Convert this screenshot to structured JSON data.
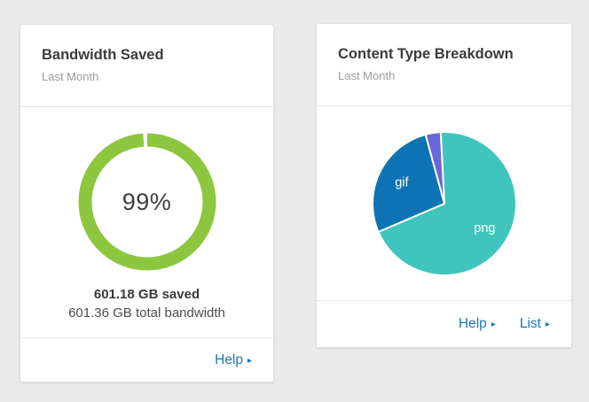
{
  "page": {
    "background_color": "#eaeaea",
    "link_color": "#1779b8",
    "arrow_glyph": "▸"
  },
  "cards": [
    {
      "title": "Bandwidth Saved",
      "subtitle": "Last Month",
      "stat_primary": "601.18 GB saved",
      "stat_secondary": "601.36 GB total bandwidth",
      "links": [
        {
          "label": "Help",
          "arrow": "▸"
        }
      ]
    },
    {
      "title": "Content Type Breakdown",
      "subtitle": "Last Month",
      "links": [
        {
          "label": "Help",
          "arrow": "▸"
        },
        {
          "label": "List",
          "arrow": "▸"
        }
      ]
    }
  ],
  "chart_data": [
    {
      "type": "pie",
      "style": "donut",
      "title": "Bandwidth Saved",
      "subtitle": "Last Month",
      "center_label": "99%",
      "percent": 99,
      "ring_color": "#8dc63f",
      "remainder_color": "#ffffff",
      "annotations": [
        "601.18 GB saved",
        "601.36 GB total bandwidth"
      ],
      "legend": "none"
    },
    {
      "type": "pie",
      "title": "Content Type Breakdown",
      "subtitle": "Last Month",
      "start_angle_deg": -3,
      "slice_border_color": "#ffffff",
      "label_color": "#ffffff",
      "slices": [
        {
          "label": "png",
          "value": 69.4,
          "color": "#3fc5bd",
          "show_label": true
        },
        {
          "label": "gif",
          "value": 27.2,
          "color": "#0e73b4",
          "show_label": true
        },
        {
          "label": "",
          "value": 3.4,
          "color": "#6a67d8",
          "show_label": false
        }
      ],
      "legend": "none"
    }
  ]
}
